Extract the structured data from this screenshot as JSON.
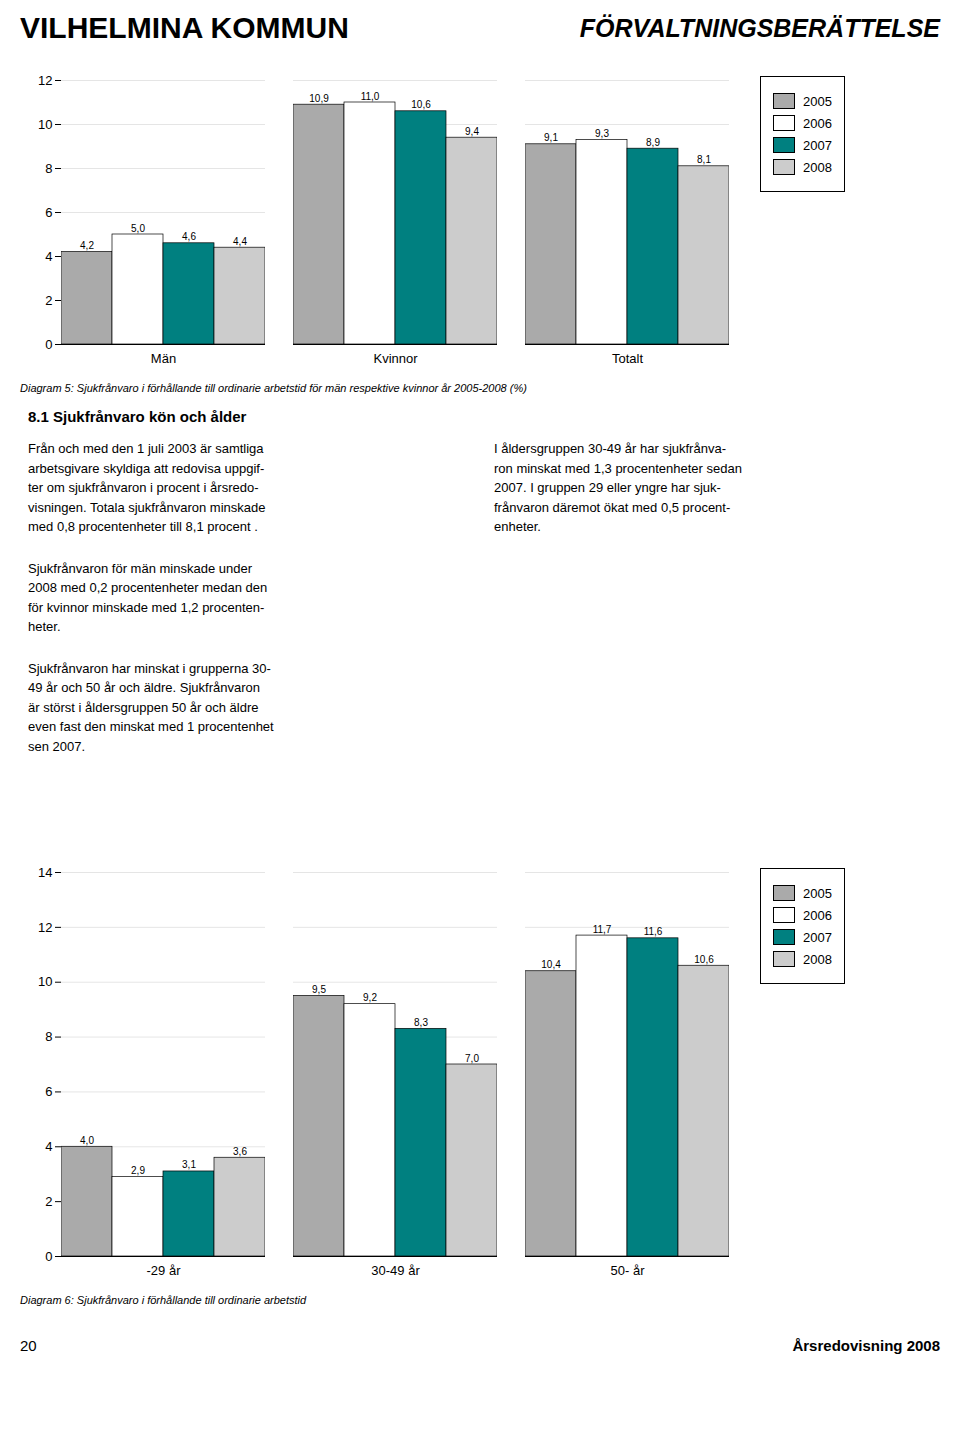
{
  "title": "VILHELMINA KOMMUN",
  "subtitle": "FÖRVALTNINGSBERÄTTELSE",
  "annotations": [
    "8.1 Sjukfrånvaro kön och ålder",
    "Från och med den 1 juli 2003 är samtliga\narbetsgivare skyldiga att redovisa uppgif-\nter om sjukfrånvaron i procent i årsredo-\nvisningen. Totala sjukfrånvaron minskade\nmed 0,8 procentenheter till 8,1 procent .",
    "Sjukfrånvaron för män minskade under\n2008 med 0,2 procentenheter medan den\nför kvinnor minskade med 1,2 procenten-\nheter.",
    "Sjukfrånvaron har minskat i grupperna 30-\n49 år och 50 år och äldre. Sjukfrånvaron\när störst i åldersgruppen 50 år och äldre\neven fast den minskat med 1 procentenhet\nsen 2007.",
    "I åldersgruppen 30-49 år har sjukfrånva-\nron minskat med 1,3 procentenheter sedan\n2007. I gruppen 29 eller yngre har sjuk-\nfrånvaron däremot ökat med 0,5 procent-\nenheter.",
    "20",
    "Årsredovisning 2008"
  ],
  "chart_data": [
    {
      "type": "bar",
      "title": "Diagram 5: Sjukfrånvaro i förhållande till ordinarie arbetstid för män respektive kvinnor år 2005-2008 (%)",
      "categories": [
        "Män",
        "Kvinnor",
        "Totalt"
      ],
      "series": [
        {
          "name": "2005",
          "color": "#aaaaaa",
          "values": [
            4.2,
            10.9,
            9.1
          ],
          "value_labels": [
            "4,2",
            "10,9",
            "9,1"
          ]
        },
        {
          "name": "2006",
          "color": "#ffffff",
          "values": [
            5.0,
            11.0,
            9.3
          ],
          "value_labels": [
            "5,0",
            "11,0",
            "9,3"
          ]
        },
        {
          "name": "2007",
          "color": "#008080",
          "values": [
            4.6,
            10.6,
            8.9
          ],
          "value_labels": [
            "4,6",
            "10,6",
            "8,9"
          ]
        },
        {
          "name": "2008",
          "color": "#cccccc",
          "values": [
            4.4,
            9.4,
            8.1
          ],
          "value_labels": [
            "4,4",
            "9,4",
            "8,1"
          ]
        }
      ],
      "ylim": [
        0,
        12
      ],
      "yticks": [
        0,
        2,
        4,
        6,
        8,
        10,
        12
      ],
      "grid": true,
      "legend": "right",
      "data_labels": true
    },
    {
      "type": "bar",
      "title": "Diagram 6: Sjukfrånvaro i förhållande till ordinarie arbetstid",
      "categories": [
        "-29 år",
        "30-49 år",
        "50- år"
      ],
      "series": [
        {
          "name": "2005",
          "color": "#aaaaaa",
          "values": [
            4.0,
            9.5,
            10.4
          ],
          "value_labels": [
            "4,0",
            "9,5",
            "10,4"
          ]
        },
        {
          "name": "2006",
          "color": "#ffffff",
          "values": [
            2.9,
            9.2,
            11.7
          ],
          "value_labels": [
            "2,9",
            "9,2",
            "11,7"
          ]
        },
        {
          "name": "2007",
          "color": "#008080",
          "values": [
            3.1,
            8.3,
            11.6
          ],
          "value_labels": [
            "3,1",
            "8,3",
            "11,6"
          ]
        },
        {
          "name": "2008",
          "color": "#cccccc",
          "values": [
            3.6,
            7.0,
            10.6
          ],
          "value_labels": [
            "3,6",
            "7,0",
            "10,6"
          ]
        }
      ],
      "ylim": [
        0,
        14
      ],
      "yticks": [
        0,
        2,
        4,
        6,
        8,
        10,
        12,
        14
      ],
      "grid": true,
      "legend": "right",
      "data_labels": true
    }
  ]
}
